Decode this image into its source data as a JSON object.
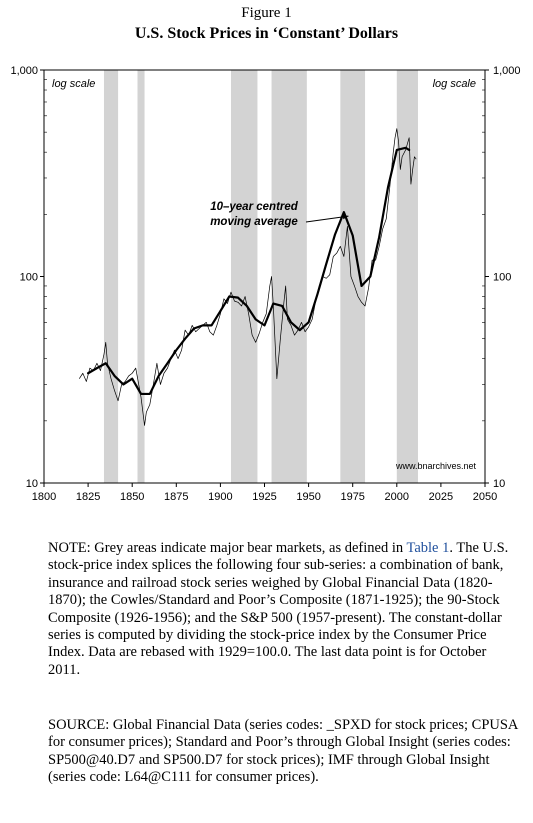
{
  "figure": {
    "label": "Figure 1",
    "title": "U.S. Stock Prices in ‘Constant’ Dollars"
  },
  "chart_data": {
    "type": "line",
    "title": "U.S. Stock Prices in ‘Constant’ Dollars",
    "xlabel": "",
    "ylabel": "",
    "xlim": [
      1800,
      2050
    ],
    "ylim": [
      10,
      1000
    ],
    "yscale": "log",
    "grid": false,
    "x_ticks": [
      1800,
      1825,
      1850,
      1875,
      1900,
      1925,
      1950,
      1975,
      2000,
      2025,
      2050
    ],
    "x_tick_labels": [
      "1800",
      "1825",
      "1850",
      "1875",
      "1900",
      "1925",
      "1950",
      "1975",
      "2000",
      "2025",
      "2050"
    ],
    "y_ticks": [
      10,
      100,
      1000
    ],
    "y_tick_labels_left": [
      "10",
      "100",
      "1,000"
    ],
    "y_tick_labels_right": [
      "10",
      "100",
      "1,000"
    ],
    "scale_note_left": "log scale",
    "scale_note_right": "log scale",
    "watermark": "www.bnarchives.net",
    "shaded_periods": [
      [
        1834,
        1842
      ],
      [
        1853,
        1857
      ],
      [
        1906,
        1921
      ],
      [
        1929,
        1949
      ],
      [
        1968,
        1982
      ],
      [
        2000,
        2012
      ]
    ],
    "annotation": {
      "lines": [
        "10–year centred",
        "moving average"
      ],
      "arrow_from": [
        1962,
        165
      ],
      "arrow_to": [
        1976,
        205
      ]
    },
    "series": [
      {
        "name": "10–year centred moving average",
        "x": [
          1825,
          1830,
          1835,
          1840,
          1845,
          1850,
          1855,
          1860,
          1865,
          1870,
          1875,
          1880,
          1885,
          1890,
          1895,
          1900,
          1905,
          1910,
          1915,
          1920,
          1925,
          1930,
          1935,
          1940,
          1945,
          1950,
          1955,
          1960,
          1965,
          1970,
          1975,
          1980,
          1985,
          1990,
          1995,
          2000,
          2005,
          2007
        ],
        "y": [
          34,
          36,
          38,
          33,
          30,
          32,
          27,
          27,
          33,
          38,
          44,
          50,
          56,
          58,
          58,
          68,
          80,
          79,
          72,
          62,
          58,
          74,
          72,
          60,
          55,
          60,
          82,
          115,
          160,
          205,
          158,
          90,
          100,
          155,
          270,
          410,
          420,
          410
        ]
      },
      {
        "name": "annual index",
        "x": [
          1820,
          1822,
          1824,
          1826,
          1828,
          1830,
          1832,
          1834,
          1835,
          1836,
          1838,
          1840,
          1842,
          1844,
          1846,
          1848,
          1850,
          1852,
          1854,
          1855,
          1857,
          1858,
          1860,
          1862,
          1864,
          1866,
          1868,
          1870,
          1872,
          1874,
          1876,
          1878,
          1880,
          1882,
          1884,
          1886,
          1888,
          1890,
          1892,
          1894,
          1896,
          1898,
          1900,
          1902,
          1904,
          1906,
          1908,
          1910,
          1912,
          1914,
          1916,
          1918,
          1920,
          1922,
          1924,
          1926,
          1928,
          1929,
          1930,
          1932,
          1934,
          1936,
          1937,
          1938,
          1940,
          1942,
          1944,
          1946,
          1948,
          1950,
          1952,
          1954,
          1956,
          1958,
          1960,
          1962,
          1964,
          1966,
          1968,
          1970,
          1972,
          1974,
          1976,
          1978,
          1980,
          1982,
          1984,
          1986,
          1988,
          1990,
          1992,
          1994,
          1996,
          1998,
          1999,
          2000,
          2001,
          2002,
          2003,
          2005,
          2007,
          2008,
          2009,
          2010,
          2011
        ],
        "y": [
          32,
          34,
          31,
          36,
          35,
          38,
          35,
          42,
          48,
          38,
          32,
          28,
          25,
          30,
          31,
          33,
          34,
          36,
          29,
          26,
          19,
          22,
          24,
          30,
          38,
          30,
          34,
          36,
          40,
          44,
          40,
          44,
          55,
          52,
          58,
          54,
          56,
          58,
          60,
          54,
          52,
          58,
          66,
          78,
          74,
          84,
          76,
          75,
          72,
          80,
          66,
          52,
          48,
          53,
          60,
          66,
          90,
          100,
          72,
          32,
          50,
          75,
          90,
          62,
          58,
          52,
          55,
          60,
          54,
          57,
          62,
          76,
          90,
          100,
          98,
          102,
          125,
          130,
          140,
          125,
          175,
          100,
          90,
          80,
          75,
          72,
          88,
          120,
          120,
          140,
          170,
          190,
          270,
          400,
          470,
          520,
          450,
          330,
          380,
          410,
          470,
          280,
          330,
          380,
          370
        ]
      }
    ]
  },
  "note": {
    "prefix": "NOTE: Grey areas indicate major bear markets, as defined in",
    "link": "Table 1",
    "rest": ". The U.S. stock-price index splices the following four sub-series: a combination of bank, insurance and railroad stock series weighed by Global Financial Data (1820-1870); the Cowles/Standard and Poor’s Composite (1871-1925); the 90-Stock Composite (1926-1956); and the S&P 500 (1957-present). The constant-dollar series is computed by dividing the stock-price index by the Consumer Price Index. Data are rebased with 1929=100.0. The last data point is for October 2011."
  },
  "source": {
    "text": "SOURCE: Global Financial Data (series codes: _SPXD for stock prices; CPUSA for consumer prices); Standard and Poor’s through Global Insight (series codes: SP500@40.D7 and SP500.D7 for stock prices); IMF through Global Insight (series code: L64@C111 for consumer prices)."
  },
  "colors": {
    "shade": "#d3d3d3",
    "frame": "#000000",
    "link": "#1f4f9c"
  }
}
